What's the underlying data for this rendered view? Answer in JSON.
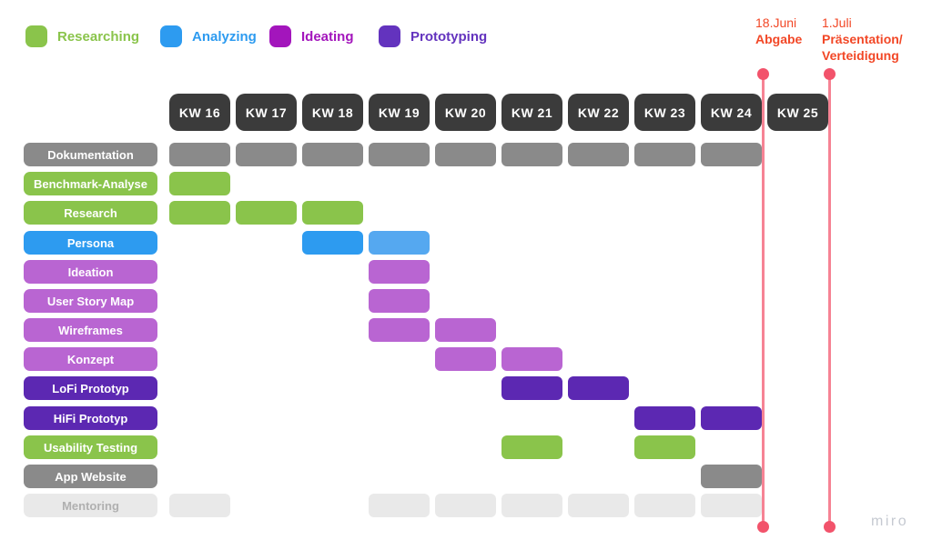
{
  "legend": {
    "items": [
      {
        "label": "Researching",
        "color": "#8AC44B"
      },
      {
        "label": "Analyzing",
        "color": "#2D9BF0"
      },
      {
        "label": "Ideating",
        "color": "#A315BC"
      },
      {
        "label": "Prototyping",
        "color": "#6333BE"
      }
    ]
  },
  "milestones": [
    {
      "date": "18.Juni",
      "title_lines": [
        "Abgabe"
      ]
    },
    {
      "date": "1.Juli",
      "title_lines": [
        "Präsentation/",
        "Verteidigung"
      ]
    }
  ],
  "watermark": "miro",
  "colors": {
    "green": "#8AC44B",
    "blue": "#2D9BF0",
    "blueLight": "#55A8F0",
    "orchid": "#B965D2",
    "purple": "#5C28B2",
    "gray": "#8A8A8A",
    "light": "#E9E9E9",
    "lightText": "#B0B0B0",
    "headerDark": "#3B3B3B",
    "milestoneText": "#F24726",
    "milestoneLine": "#F2536B"
  },
  "chart_data": {
    "type": "gantt",
    "title": "",
    "columns": [
      "KW 16",
      "KW 17",
      "KW 18",
      "KW 19",
      "KW 20",
      "KW 21",
      "KW 22",
      "KW 23",
      "KW 24",
      "KW 25"
    ],
    "rows": [
      {
        "label": "Dokumentation",
        "color": "gray",
        "bars": [
          {
            "week": "KW 16"
          },
          {
            "week": "KW 17"
          },
          {
            "week": "KW 18"
          },
          {
            "week": "KW 19"
          },
          {
            "week": "KW 20"
          },
          {
            "week": "KW 21"
          },
          {
            "week": "KW 22"
          },
          {
            "week": "KW 23"
          },
          {
            "week": "KW 24"
          }
        ]
      },
      {
        "label": "Benchmark-Analyse",
        "color": "green",
        "bars": [
          {
            "week": "KW 16"
          }
        ]
      },
      {
        "label": "Research",
        "color": "green",
        "bars": [
          {
            "week": "KW 16"
          },
          {
            "week": "KW 17"
          },
          {
            "week": "KW 18"
          }
        ]
      },
      {
        "label": "Persona",
        "color": "blue",
        "bars": [
          {
            "week": "KW 18"
          },
          {
            "week": "KW 19",
            "color": "blueLight"
          }
        ]
      },
      {
        "label": "Ideation",
        "color": "orchid",
        "bars": [
          {
            "week": "KW 19"
          }
        ]
      },
      {
        "label": "User Story Map",
        "color": "orchid",
        "bars": [
          {
            "week": "KW 19"
          }
        ]
      },
      {
        "label": "Wireframes",
        "color": "orchid",
        "bars": [
          {
            "week": "KW 19"
          },
          {
            "week": "KW 20"
          }
        ]
      },
      {
        "label": "Konzept",
        "color": "orchid",
        "bars": [
          {
            "week": "KW 20"
          },
          {
            "week": "KW 21"
          }
        ]
      },
      {
        "label": "LoFi Prototyp",
        "color": "purple",
        "bars": [
          {
            "week": "KW 21"
          },
          {
            "week": "KW 22"
          }
        ]
      },
      {
        "label": "HiFi Prototyp",
        "color": "purple",
        "bars": [
          {
            "week": "KW 23"
          },
          {
            "week": "KW 24"
          }
        ]
      },
      {
        "label": "Usability Testing",
        "color": "green",
        "bars": [
          {
            "week": "KW 21"
          },
          {
            "week": "KW 23"
          }
        ]
      },
      {
        "label": "App Website",
        "color": "gray",
        "bars": [
          {
            "week": "KW 24"
          }
        ]
      },
      {
        "label": "Mentoring",
        "color": "light",
        "text_color": "lightText",
        "bars": [
          {
            "week": "KW 16"
          },
          {
            "week": "KW 19"
          },
          {
            "week": "KW 20"
          },
          {
            "week": "KW 21"
          },
          {
            "week": "KW 22"
          },
          {
            "week": "KW 23"
          },
          {
            "week": "KW 24"
          }
        ]
      }
    ]
  }
}
